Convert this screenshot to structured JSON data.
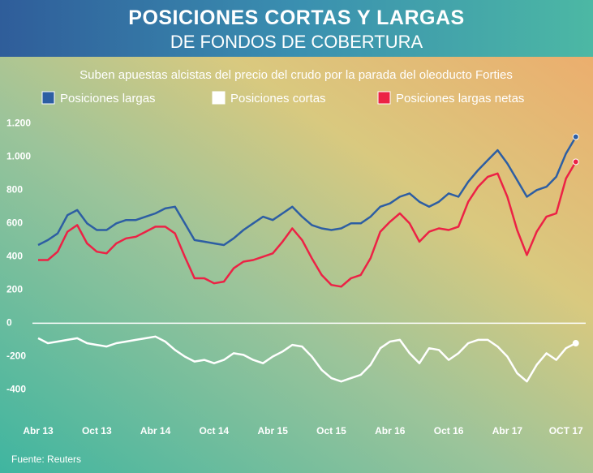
{
  "chart_data": {
    "type": "line",
    "title": "POSICIONES CORTAS Y LARGAS",
    "subtitle": "DE FONDOS DE COBERTURA",
    "description": "Suben apuestas alcistas del precio del crudo por la parada del oleoducto Forties",
    "source": "Fuente: Reuters",
    "categories": [
      "Abr 13",
      null,
      null,
      null,
      null,
      null,
      "Oct 13",
      null,
      null,
      null,
      null,
      null,
      "Abr 14",
      null,
      null,
      null,
      null,
      null,
      "Oct 14",
      null,
      null,
      null,
      null,
      null,
      "Abr 15",
      null,
      null,
      null,
      null,
      null,
      "Oct 15",
      null,
      null,
      null,
      null,
      null,
      "Abr 16",
      null,
      null,
      null,
      null,
      null,
      "Oct 16",
      null,
      null,
      null,
      null,
      null,
      "Abr 17",
      null,
      null,
      null,
      null,
      null,
      "OCT 17",
      null
    ],
    "series": [
      {
        "name": "Posiciones largas",
        "color": "#2d5ea3",
        "values": [
          470,
          500,
          540,
          650,
          680,
          600,
          560,
          560,
          600,
          620,
          620,
          640,
          660,
          690,
          700,
          600,
          500,
          490,
          480,
          470,
          510,
          560,
          600,
          640,
          620,
          660,
          700,
          640,
          590,
          570,
          560,
          570,
          600,
          600,
          640,
          700,
          720,
          760,
          780,
          730,
          700,
          730,
          780,
          760,
          850,
          920,
          980,
          1040,
          960,
          860,
          760,
          800,
          820,
          880,
          1020,
          1120
        ]
      },
      {
        "name": "Posiciones cortas",
        "color": "#ffffff",
        "values": [
          -90,
          -120,
          -110,
          -100,
          -90,
          -120,
          -130,
          -140,
          -120,
          -110,
          -100,
          -90,
          -80,
          -110,
          -160,
          -200,
          -230,
          -220,
          -240,
          -220,
          -180,
          -190,
          -220,
          -240,
          -200,
          -170,
          -130,
          -140,
          -200,
          -280,
          -330,
          -350,
          -330,
          -310,
          -250,
          -150,
          -110,
          -100,
          -180,
          -240,
          -150,
          -160,
          -220,
          -180,
          -120,
          -100,
          -100,
          -140,
          -200,
          -300,
          -350,
          -250,
          -180,
          -220,
          -150,
          -120
        ]
      },
      {
        "name": "Posiciones largas netas",
        "color": "#ec2245",
        "values": [
          380,
          380,
          430,
          550,
          590,
          480,
          430,
          420,
          480,
          510,
          520,
          550,
          580,
          580,
          540,
          400,
          270,
          270,
          240,
          250,
          330,
          370,
          380,
          400,
          420,
          490,
          570,
          500,
          390,
          290,
          230,
          220,
          270,
          290,
          390,
          550,
          610,
          660,
          600,
          490,
          550,
          570,
          560,
          580,
          730,
          820,
          880,
          900,
          760,
          560,
          410,
          550,
          640,
          660,
          870,
          970
        ]
      }
    ],
    "ylim": [
      -500,
      1250
    ],
    "yticks": [
      {
        "value": 1200,
        "label": "1.200"
      },
      {
        "value": 1000,
        "label": "1.000"
      },
      800,
      600,
      400,
      200,
      0,
      -200,
      -400
    ]
  }
}
